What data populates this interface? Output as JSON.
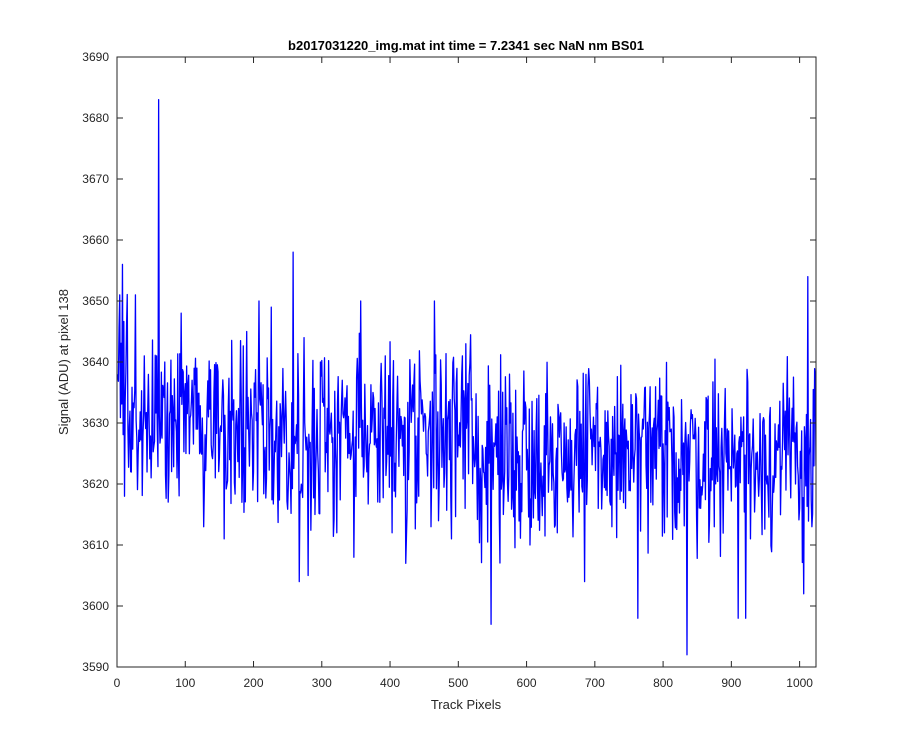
{
  "chart_data": {
    "type": "line",
    "title": "b2017031220_img.mat int time = 7.2341 sec  NaN nm BS01",
    "xlabel": "Track Pixels",
    "ylabel": "Signal (ADU) at pixel 138",
    "xlim": [
      0,
      1024
    ],
    "ylim": [
      3590,
      3690
    ],
    "xticks": [
      0,
      100,
      200,
      300,
      400,
      500,
      600,
      700,
      800,
      900,
      1000
    ],
    "yticks": [
      3590,
      3600,
      3610,
      3620,
      3630,
      3640,
      3650,
      3660,
      3670,
      3680,
      3690
    ],
    "grid": false,
    "legend": "none",
    "line_color": "#0000ff",
    "series": [
      {
        "x_start": 1,
        "x_step": 1,
        "approximate_points": [
          [
            1,
            3638
          ],
          [
            4,
            3651
          ],
          [
            8,
            3656
          ],
          [
            11,
            3618
          ],
          [
            14,
            3646
          ],
          [
            20,
            3622
          ],
          [
            27,
            3651
          ],
          [
            33,
            3627
          ],
          [
            40,
            3641
          ],
          [
            45,
            3632
          ],
          [
            50,
            3621
          ],
          [
            55,
            3627
          ],
          [
            58,
            3641
          ],
          [
            61,
            3683
          ],
          [
            64,
            3628
          ],
          [
            70,
            3640
          ],
          [
            78,
            3632
          ],
          [
            88,
            3621
          ],
          [
            94,
            3648
          ],
          [
            101,
            3625
          ],
          [
            110,
            3637
          ],
          [
            118,
            3629
          ],
          [
            127,
            3613
          ],
          [
            134,
            3631
          ],
          [
            144,
            3621
          ],
          [
            151,
            3629
          ],
          [
            157,
            3611
          ],
          [
            165,
            3624
          ],
          [
            175,
            3632
          ],
          [
            183,
            3617
          ],
          [
            190,
            3645
          ],
          [
            200,
            3622
          ],
          [
            208,
            3650
          ],
          [
            217,
            3626
          ],
          [
            226,
            3649
          ],
          [
            235,
            3621
          ],
          [
            244,
            3631
          ],
          [
            251,
            3620
          ],
          [
            258,
            3658
          ],
          [
            264,
            3625
          ],
          [
            267,
            3604
          ],
          [
            274,
            3644
          ],
          [
            280,
            3605
          ],
          [
            290,
            3615
          ],
          [
            298,
            3640
          ],
          [
            305,
            3622
          ],
          [
            313,
            3630
          ],
          [
            322,
            3612
          ],
          [
            330,
            3637
          ],
          [
            340,
            3625
          ],
          [
            347,
            3608
          ],
          [
            357,
            3650
          ],
          [
            366,
            3622
          ],
          [
            375,
            3635
          ],
          [
            385,
            3617
          ],
          [
            393,
            3641
          ],
          [
            403,
            3612
          ],
          [
            412,
            3630
          ],
          [
            423,
            3607
          ],
          [
            432,
            3633
          ],
          [
            442,
            3618
          ],
          [
            452,
            3631
          ],
          [
            460,
            3613
          ],
          [
            465,
            3650
          ],
          [
            472,
            3620
          ],
          [
            481,
            3630
          ],
          [
            490,
            3611
          ],
          [
            500,
            3628
          ],
          [
            510,
            3616
          ],
          [
            520,
            3634
          ],
          [
            530,
            3620
          ],
          [
            540,
            3626
          ],
          [
            548,
            3597
          ],
          [
            557,
            3631
          ],
          [
            566,
            3615
          ],
          [
            575,
            3638
          ],
          [
            585,
            3619
          ],
          [
            595,
            3629
          ],
          [
            605,
            3610
          ],
          [
            615,
            3634
          ],
          [
            625,
            3618
          ],
          [
            635,
            3631
          ],
          [
            645,
            3612
          ],
          [
            655,
            3630
          ],
          [
            665,
            3619
          ],
          [
            675,
            3636
          ],
          [
            685,
            3604
          ],
          [
            695,
            3629
          ],
          [
            705,
            3616
          ],
          [
            715,
            3632
          ],
          [
            725,
            3613
          ],
          [
            735,
            3628
          ],
          [
            745,
            3616
          ],
          [
            755,
            3633
          ],
          [
            763,
            3598
          ],
          [
            772,
            3631
          ],
          [
            782,
            3617
          ],
          [
            792,
            3630
          ],
          [
            802,
            3612
          ],
          [
            812,
            3629
          ],
          [
            822,
            3617
          ],
          [
            832,
            3627
          ],
          [
            835,
            3592
          ],
          [
            845,
            3628
          ],
          [
            855,
            3616
          ],
          [
            865,
            3629
          ],
          [
            875,
            3613
          ],
          [
            885,
            3626
          ],
          [
            895,
            3619
          ],
          [
            905,
            3628
          ],
          [
            910,
            3598
          ],
          [
            918,
            3631
          ],
          [
            921,
            3598
          ],
          [
            930,
            3625
          ],
          [
            940,
            3618
          ],
          [
            950,
            3628
          ],
          [
            960,
            3616
          ],
          [
            970,
            3626
          ],
          [
            980,
            3619
          ],
          [
            990,
            3627
          ],
          [
            1000,
            3616
          ],
          [
            1006,
            3602
          ],
          [
            1012,
            3654
          ],
          [
            1018,
            3613
          ],
          [
            1024,
            3623
          ]
        ],
        "mean": 3627,
        "std": 7
      }
    ]
  }
}
